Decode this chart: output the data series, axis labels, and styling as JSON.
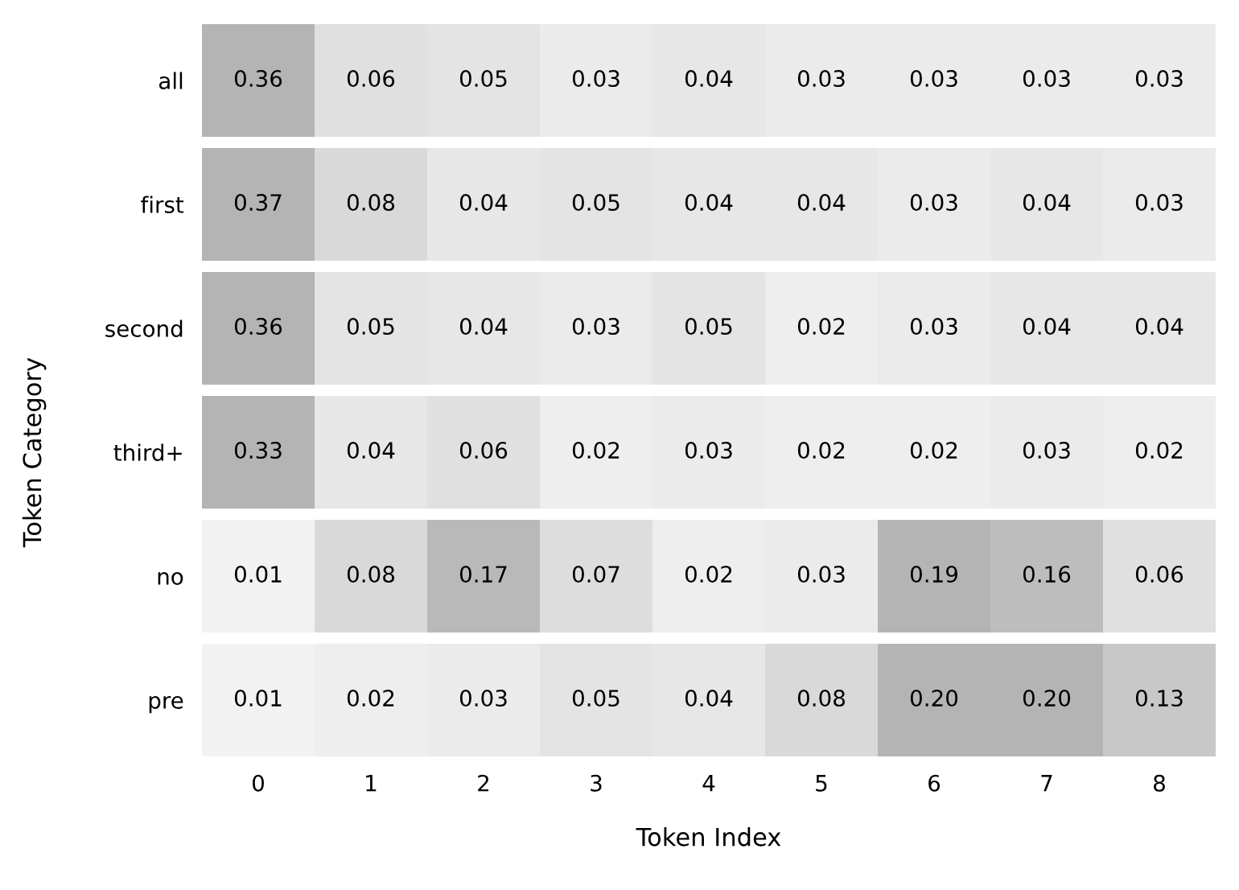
{
  "chart_data": [
    {
      "type": "heatmap",
      "categories": [
        "0",
        "1",
        "2",
        "3",
        "4",
        "5",
        "6",
        "7",
        "8"
      ],
      "y_categories": [
        "all"
      ],
      "cells": [
        [
          0.36,
          0.06,
          0.05,
          0.03,
          0.04,
          0.03,
          0.03,
          0.03,
          0.03
        ]
      ],
      "cell_labels": [
        [
          "0.36",
          "0.06",
          "0.05",
          "0.03",
          "0.04",
          "0.03",
          "0.03",
          "0.03",
          "0.03"
        ]
      ],
      "tick_labels": "y",
      "colors": [
        "#f5f5f5",
        "#b4b4b4",
        "#b4b4b4"
      ]
    },
    {
      "type": "heatmap",
      "categories": [
        "0",
        "1",
        "2",
        "3",
        "4",
        "5",
        "6",
        "7",
        "8"
      ],
      "y_categories": [
        "first"
      ],
      "cells": [
        [
          0.37,
          0.08,
          0.04,
          0.05,
          0.04,
          0.04,
          0.03,
          0.04,
          0.03
        ]
      ],
      "cell_labels": [
        [
          "0.37",
          "0.08",
          "0.04",
          "0.05",
          "0.04",
          "0.04",
          "0.03",
          "0.04",
          "0.03"
        ]
      ],
      "tick_labels": "y",
      "colors": [
        "#f5f5f5",
        "#b4b4b4",
        "#b4b4b4"
      ]
    },
    {
      "type": "heatmap",
      "categories": [
        "0",
        "1",
        "2",
        "3",
        "4",
        "5",
        "6",
        "7",
        "8"
      ],
      "y_categories": [
        "second"
      ],
      "cells": [
        [
          0.36,
          0.05,
          0.04,
          0.03,
          0.05,
          0.02,
          0.03,
          0.04,
          0.04
        ]
      ],
      "cell_labels": [
        [
          "0.36",
          "0.05",
          "0.04",
          "0.03",
          "0.05",
          "0.02",
          "0.03",
          "0.04",
          "0.04"
        ]
      ],
      "tick_labels": "y",
      "colors": [
        "#f5f5f5",
        "#b4b4b4",
        "#b4b4b4"
      ]
    },
    {
      "type": "heatmap",
      "ylabel": "Token Category",
      "categories": [
        "0",
        "1",
        "2",
        "3",
        "4",
        "5",
        "6",
        "7",
        "8"
      ],
      "y_categories": [
        "third+"
      ],
      "cells": [
        [
          0.33,
          0.04,
          0.06,
          0.02,
          0.03,
          0.02,
          0.02,
          0.03,
          0.02
        ]
      ],
      "cell_labels": [
        [
          "0.33",
          "0.04",
          "0.06",
          "0.02",
          "0.03",
          "0.02",
          "0.02",
          "0.03",
          "0.02"
        ]
      ],
      "tick_labels": "y",
      "colors": [
        "#f5f5f5",
        "#b4b4b4",
        "#b4b4b4"
      ]
    },
    {
      "type": "heatmap",
      "categories": [
        "0",
        "1",
        "2",
        "3",
        "4",
        "5",
        "6",
        "7",
        "8"
      ],
      "y_categories": [
        "no"
      ],
      "cells": [
        [
          0.01,
          0.08,
          0.17,
          0.07,
          0.02,
          0.03,
          0.19,
          0.16,
          0.06
        ]
      ],
      "cell_labels": [
        [
          "0.01",
          "0.08",
          "0.17",
          "0.07",
          "0.02",
          "0.03",
          "0.19",
          "0.16",
          "0.06"
        ]
      ],
      "tick_labels": "y",
      "colors": [
        "#f5f5f5",
        "#b4b4b4",
        "#b4b4b4"
      ]
    },
    {
      "type": "heatmap",
      "xlabel": "Token Index",
      "categories": [
        "0",
        "1",
        "2",
        "3",
        "4",
        "5",
        "6",
        "7",
        "8"
      ],
      "y_categories": [
        "pre"
      ],
      "cells": [
        [
          0.01,
          0.02,
          0.03,
          0.05,
          0.04,
          0.08,
          0.2,
          0.2,
          0.13
        ]
      ],
      "cell_labels": [
        [
          "0.01",
          "0.02",
          "0.03",
          "0.05",
          "0.04",
          "0.08",
          "0.20",
          "0.20",
          "0.13"
        ]
      ],
      "colors": [
        "#f5f5f5",
        "#b4b4b4",
        "#b4b4b4"
      ]
    }
  ]
}
